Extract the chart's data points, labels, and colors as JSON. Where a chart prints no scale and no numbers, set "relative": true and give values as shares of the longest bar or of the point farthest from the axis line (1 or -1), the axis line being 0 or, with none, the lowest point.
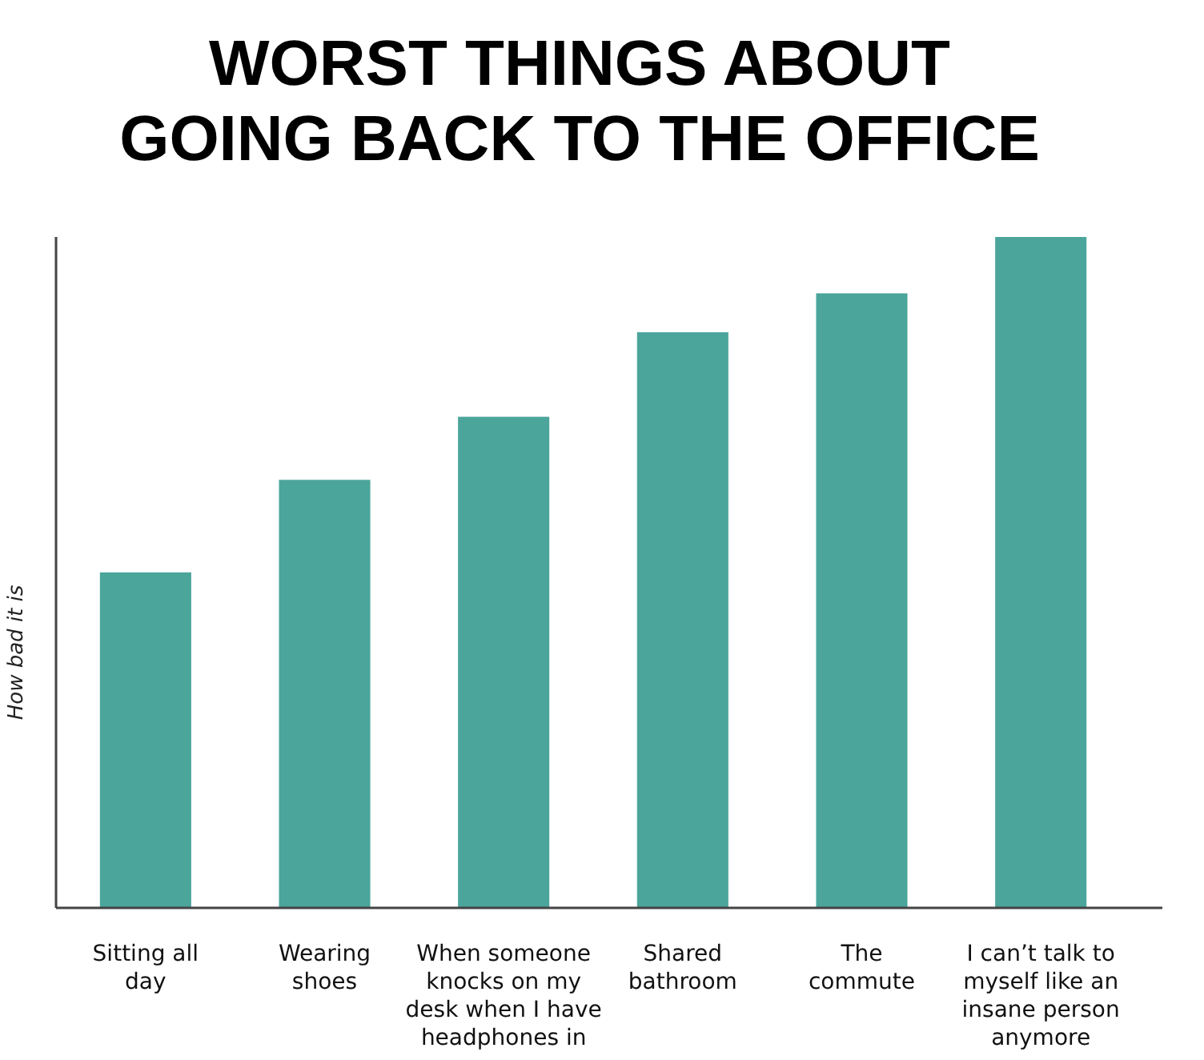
{
  "chart_data": {
    "type": "bar",
    "title": "WORST THINGS ABOUT\nGOING BACK TO THE OFFICE",
    "ylabel": "How bad it is",
    "categories": [
      "Sitting all\nday",
      "Wearing\nshoes",
      "When someone\nknocks on my\ndesk when I have\nheadphones in",
      "Shared\nbathroom",
      "The\ncommute",
      "I can’t talk to\nmyself like an\ninsane person\nanymore"
    ],
    "values": [
      0.5,
      0.638,
      0.732,
      0.858,
      0.916,
      1
    ],
    "color": "#4ba59b",
    "relative": true
  }
}
